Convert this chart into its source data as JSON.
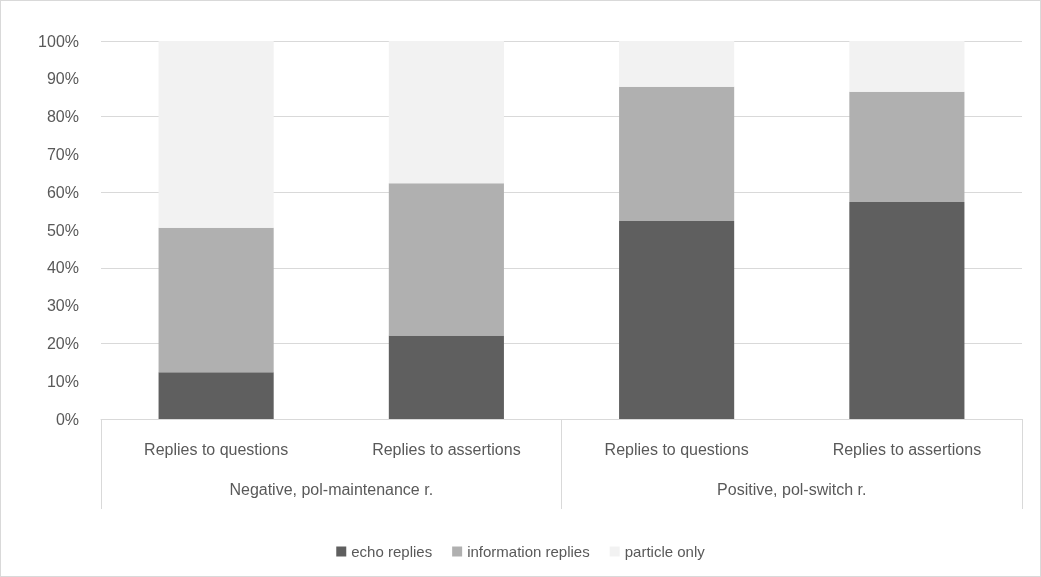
{
  "chart_data": {
    "type": "bar",
    "stacked": true,
    "categories": [
      "Replies to questions",
      "Replies to assertions",
      "Replies to questions",
      "Replies to assertions"
    ],
    "annotations": [
      "Negative, pol-maintenance r.",
      "Positive, pol-switch r."
    ],
    "series": [
      {
        "name": "echo replies",
        "color": "#5f5f5f",
        "values": [
          12.4,
          22.1,
          52.4,
          57.4
        ]
      },
      {
        "name": "information replies",
        "color": "#b0b0b0",
        "values": [
          38.2,
          40.3,
          35.5,
          29.2
        ]
      },
      {
        "name": "particle only",
        "color": "#f2f2f2",
        "values": [
          49.4,
          37.6,
          12.1,
          13.4
        ]
      }
    ],
    "ylim": [
      0,
      100
    ],
    "yticks": [
      {
        "value": 0,
        "label": "0%"
      },
      {
        "value": 10,
        "label": "10%"
      },
      {
        "value": 20,
        "label": "20%"
      },
      {
        "value": 30,
        "label": "30%"
      },
      {
        "value": 40,
        "label": "40%"
      },
      {
        "value": 50,
        "label": "50%"
      },
      {
        "value": 60,
        "label": "60%"
      },
      {
        "value": 70,
        "label": "70%"
      },
      {
        "value": 80,
        "label": "80%"
      },
      {
        "value": 90,
        "label": "90%"
      },
      {
        "value": 100,
        "label": "100%"
      }
    ],
    "grid": "y",
    "legend": "bottom"
  }
}
